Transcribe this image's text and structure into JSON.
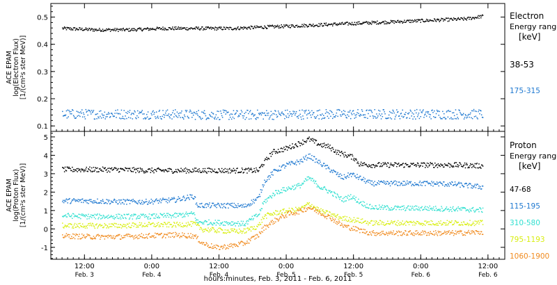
{
  "chart_data": [
    {
      "type": "scatter",
      "ylabel": [
        "ACE EPAM",
        "log(Electron Flux)",
        "[1/(cm²s ster MeV)]"
      ],
      "yticks": [
        0.1,
        0.2,
        0.3,
        0.4,
        0.5
      ],
      "ylim": [
        0.08,
        0.55
      ],
      "legend_title": [
        "Electron",
        "Energy range",
        "[keV]"
      ],
      "series": [
        {
          "name": "38-53",
          "color": "#000000",
          "x": [
            0,
            12,
            24,
            36,
            48,
            60,
            72,
            84,
            96,
            108,
            120,
            132,
            144,
            150
          ],
          "y": [
            0.46,
            0.455,
            0.455,
            0.46,
            0.46,
            0.46,
            0.465,
            0.47,
            0.475,
            0.48,
            0.485,
            0.49,
            0.495,
            0.505
          ]
        },
        {
          "name": "175-315",
          "color": "#1e78d0",
          "x": [
            0,
            30,
            60,
            90,
            120,
            150
          ],
          "y": [
            0.145,
            0.145,
            0.142,
            0.145,
            0.145,
            0.145
          ]
        }
      ]
    },
    {
      "type": "scatter",
      "ylabel": [
        "ACE EPAM",
        "log(Proton Flux)",
        "[1/(cm²s ster MeV)]"
      ],
      "yticks": [
        -1,
        0,
        1,
        2,
        3,
        4,
        5
      ],
      "ylim": [
        -1.65,
        5.3
      ],
      "legend_title": [
        "Proton",
        "Energy range",
        "[keV]"
      ],
      "series": [
        {
          "name": "47-68",
          "color": "#000000",
          "x": [
            0,
            10,
            20,
            30,
            40,
            50,
            60,
            70,
            71,
            75,
            80,
            85,
            88,
            92,
            95,
            98,
            102,
            104,
            106,
            110,
            115,
            120,
            130,
            140,
            150
          ],
          "y": [
            3.25,
            3.25,
            3.25,
            3.2,
            3.2,
            3.2,
            3.2,
            3.2,
            3.45,
            4.2,
            4.4,
            4.7,
            4.9,
            4.6,
            4.5,
            4.2,
            4.0,
            3.9,
            3.55,
            3.5,
            3.5,
            3.5,
            3.5,
            3.5,
            3.45
          ]
        },
        {
          "name": "115-195",
          "color": "#1e78d0",
          "x": [
            0,
            10,
            20,
            30,
            40,
            47,
            48,
            60,
            65,
            70,
            72,
            76,
            80,
            85,
            88,
            92,
            96,
            100,
            103,
            106,
            110,
            120,
            130,
            140,
            150
          ],
          "y": [
            1.55,
            1.55,
            1.5,
            1.5,
            1.6,
            1.8,
            1.3,
            1.3,
            1.25,
            1.7,
            2.6,
            3.2,
            3.5,
            3.7,
            4.0,
            3.6,
            3.2,
            2.8,
            3.0,
            2.8,
            2.5,
            2.5,
            2.5,
            2.45,
            2.3
          ]
        },
        {
          "name": "310-580",
          "color": "#30e0d0",
          "x": [
            0,
            10,
            20,
            30,
            40,
            47,
            48,
            60,
            65,
            70,
            72,
            76,
            80,
            85,
            88,
            92,
            96,
            100,
            103,
            106,
            110,
            120,
            130,
            140,
            150
          ],
          "y": [
            0.75,
            0.7,
            0.7,
            0.7,
            0.75,
            0.85,
            0.4,
            0.35,
            0.3,
            0.8,
            1.5,
            2.0,
            2.2,
            2.4,
            2.8,
            2.3,
            2.0,
            1.6,
            1.8,
            1.5,
            1.2,
            1.15,
            1.15,
            1.1,
            1.05
          ]
        },
        {
          "name": "795-1193",
          "color": "#d8ee10",
          "x": [
            0,
            10,
            20,
            30,
            40,
            47,
            50,
            60,
            65,
            70,
            72,
            76,
            80,
            85,
            88,
            92,
            96,
            100,
            105,
            110,
            120,
            130,
            140,
            150
          ],
          "y": [
            0.2,
            0.2,
            0.2,
            0.25,
            0.25,
            0.3,
            0.0,
            -0.1,
            -0.1,
            0.2,
            0.7,
            0.9,
            1.0,
            1.1,
            1.4,
            1.0,
            0.8,
            0.6,
            0.5,
            0.35,
            0.35,
            0.35,
            0.35,
            0.35
          ]
        },
        {
          "name": "1060-1900",
          "color": "#f08a1e",
          "x": [
            0,
            10,
            20,
            30,
            40,
            47,
            50,
            55,
            60,
            65,
            70,
            72,
            76,
            80,
            85,
            88,
            92,
            96,
            100,
            105,
            110,
            120,
            130,
            140,
            150
          ],
          "y": [
            -0.35,
            -0.4,
            -0.4,
            -0.35,
            -0.3,
            -0.35,
            -0.75,
            -1.0,
            -0.9,
            -0.75,
            -0.3,
            0.1,
            0.5,
            0.8,
            1.0,
            1.2,
            0.9,
            0.6,
            0.2,
            0.0,
            -0.2,
            -0.2,
            -0.2,
            -0.2,
            -0.15
          ]
        }
      ]
    }
  ],
  "x_axis": {
    "label": "hours:minutes, Feb.  3, 2011 - Feb.  6, 2011",
    "xlim": [
      -4,
      158
    ],
    "ticks": [
      {
        "x": 8,
        "time": "12:00",
        "date": "Feb. 3"
      },
      {
        "x": 32,
        "time": "0:00",
        "date": "Feb. 4"
      },
      {
        "x": 56,
        "time": "12:00",
        "date": "Feb. 4"
      },
      {
        "x": 80,
        "time": "0:00",
        "date": "Feb. 5"
      },
      {
        "x": 104,
        "time": "12:00",
        "date": "Feb. 5"
      },
      {
        "x": 128,
        "time": "0:00",
        "date": "Feb. 6"
      },
      {
        "x": 152,
        "time": "12:00",
        "date": "Feb. 6"
      }
    ]
  }
}
